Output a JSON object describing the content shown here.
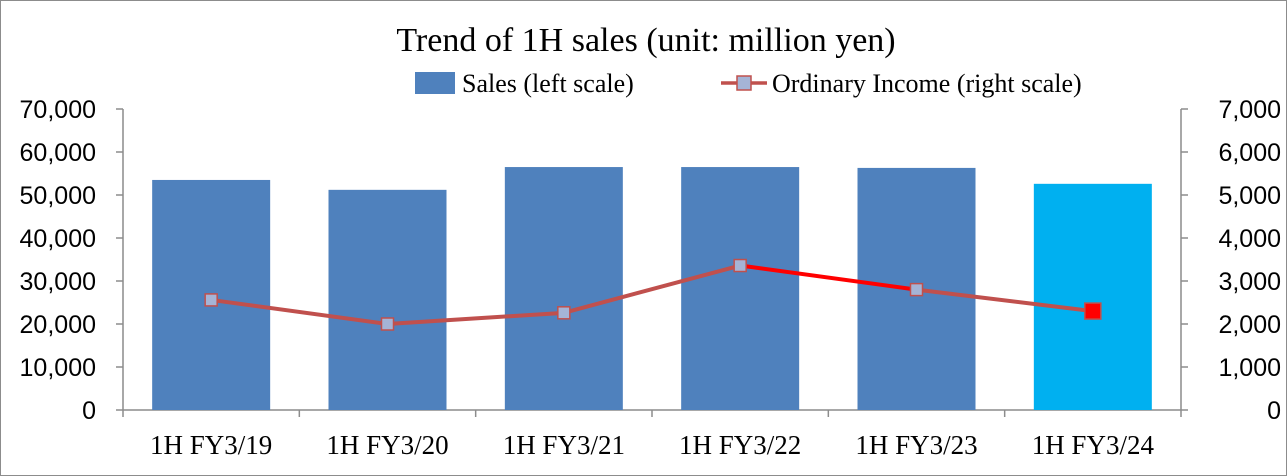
{
  "chart_data": {
    "type": "bar",
    "title": "Trend of  1H sales (unit: million yen)",
    "categories": [
      "1H FY3/19",
      "1H FY3/20",
      "1H FY3/21",
      "1H FY3/22",
      "1H FY3/23",
      "1H FY3/24"
    ],
    "series": [
      {
        "name": "Sales (left scale)",
        "type": "bar",
        "axis": "left",
        "values": [
          53500,
          51200,
          56500,
          56500,
          56300,
          52600
        ],
        "color": "#4f81bd",
        "highlight_color": "#00b0f0"
      },
      {
        "name": "Ordinary Income (right scale)",
        "type": "line",
        "axis": "right",
        "values": [
          2560,
          2000,
          2260,
          3360,
          2800,
          2300
        ],
        "color": "#c0504d",
        "highlight_color": "#ff0000",
        "marker_color": "#a5b4d6"
      }
    ],
    "left_axis": {
      "ylim": [
        0,
        70000
      ],
      "ticks": [
        "0",
        "10,000",
        "20,000",
        "30,000",
        "40,000",
        "50,000",
        "60,000",
        "70,000"
      ]
    },
    "right_axis": {
      "ylim": [
        0,
        7000
      ],
      "ticks": [
        "0",
        "1,000",
        "2,000",
        "3,000",
        "4,000",
        "5,000",
        "6,000",
        "7,000"
      ]
    },
    "grid": false,
    "legend_position": "top-right"
  }
}
